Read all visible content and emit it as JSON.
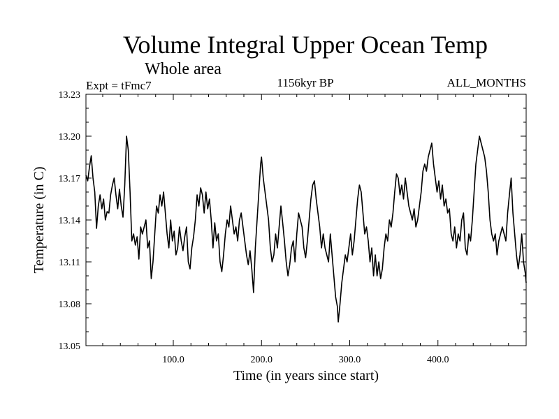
{
  "chart_data": {
    "type": "line",
    "title": "Volume Integral Upper Ocean Temp",
    "subtitle": "Whole area",
    "experiment_label": "Expt = tFmc7",
    "period_label": "1156kyr BP",
    "months_label": "ALL_MONTHS",
    "xlabel": "Time (in years since start)",
    "ylabel": "Temperature (in C)",
    "xlim": [
      1,
      500
    ],
    "ylim": [
      13.05,
      13.23
    ],
    "x_ticks": [
      100,
      200,
      300,
      400
    ],
    "x_tick_labels": [
      "100.0",
      "200.0",
      "300.0",
      "400.0"
    ],
    "y_ticks": [
      13.05,
      13.08,
      13.11,
      13.14,
      13.17,
      13.2,
      13.23
    ],
    "y_tick_labels": [
      "13.05",
      "13.08",
      "13.11",
      "13.14",
      "13.17",
      "13.20",
      "13.23"
    ],
    "grid": false,
    "series": [
      {
        "name": "Volume Integral Upper Ocean Temp",
        "color": "#000000",
        "points": [
          [
            1,
            13.172
          ],
          [
            3,
            13.168
          ],
          [
            5,
            13.178
          ],
          [
            7,
            13.186
          ],
          [
            9,
            13.17
          ],
          [
            11,
            13.16
          ],
          [
            13,
            13.134
          ],
          [
            15,
            13.15
          ],
          [
            17,
            13.158
          ],
          [
            19,
            13.148
          ],
          [
            21,
            13.155
          ],
          [
            23,
            13.14
          ],
          [
            25,
            13.146
          ],
          [
            27,
            13.145
          ],
          [
            29,
            13.158
          ],
          [
            31,
            13.165
          ],
          [
            33,
            13.17
          ],
          [
            35,
            13.158
          ],
          [
            37,
            13.148
          ],
          [
            39,
            13.162
          ],
          [
            41,
            13.15
          ],
          [
            43,
            13.142
          ],
          [
            45,
            13.165
          ],
          [
            47,
            13.2
          ],
          [
            49,
            13.19
          ],
          [
            51,
            13.16
          ],
          [
            53,
            13.125
          ],
          [
            55,
            13.13
          ],
          [
            57,
            13.122
          ],
          [
            59,
            13.128
          ],
          [
            61,
            13.112
          ],
          [
            63,
            13.135
          ],
          [
            65,
            13.13
          ],
          [
            67,
            13.135
          ],
          [
            69,
            13.14
          ],
          [
            71,
            13.12
          ],
          [
            73,
            13.125
          ],
          [
            75,
            13.098
          ],
          [
            77,
            13.11
          ],
          [
            79,
            13.13
          ],
          [
            81,
            13.15
          ],
          [
            83,
            13.145
          ],
          [
            85,
            13.158
          ],
          [
            87,
            13.15
          ],
          [
            89,
            13.16
          ],
          [
            91,
            13.145
          ],
          [
            93,
            13.13
          ],
          [
            95,
            13.12
          ],
          [
            97,
            13.14
          ],
          [
            99,
            13.125
          ],
          [
            101,
            13.132
          ],
          [
            103,
            13.115
          ],
          [
            105,
            13.12
          ],
          [
            107,
            13.135
          ],
          [
            109,
            13.125
          ],
          [
            111,
            13.118
          ],
          [
            113,
            13.128
          ],
          [
            115,
            13.135
          ],
          [
            117,
            13.11
          ],
          [
            119,
            13.105
          ],
          [
            121,
            13.12
          ],
          [
            123,
            13.128
          ],
          [
            125,
            13.14
          ],
          [
            127,
            13.158
          ],
          [
            129,
            13.15
          ],
          [
            131,
            13.163
          ],
          [
            133,
            13.158
          ],
          [
            135,
            13.145
          ],
          [
            137,
            13.16
          ],
          [
            139,
            13.148
          ],
          [
            141,
            13.155
          ],
          [
            143,
            13.14
          ],
          [
            145,
            13.12
          ],
          [
            147,
            13.138
          ],
          [
            149,
            13.125
          ],
          [
            151,
            13.13
          ],
          [
            153,
            13.11
          ],
          [
            155,
            13.103
          ],
          [
            157,
            13.115
          ],
          [
            159,
            13.13
          ],
          [
            161,
            13.14
          ],
          [
            163,
            13.135
          ],
          [
            165,
            13.15
          ],
          [
            167,
            13.14
          ],
          [
            169,
            13.13
          ],
          [
            171,
            13.135
          ],
          [
            173,
            13.125
          ],
          [
            175,
            13.14
          ],
          [
            177,
            13.145
          ],
          [
            179,
            13.135
          ],
          [
            181,
            13.125
          ],
          [
            183,
            13.115
          ],
          [
            185,
            13.108
          ],
          [
            187,
            13.118
          ],
          [
            189,
            13.105
          ],
          [
            191,
            13.088
          ],
          [
            193,
            13.12
          ],
          [
            195,
            13.14
          ],
          [
            197,
            13.16
          ],
          [
            199,
            13.18
          ],
          [
            200,
            13.185
          ],
          [
            202,
            13.17
          ],
          [
            204,
            13.16
          ],
          [
            206,
            13.15
          ],
          [
            208,
            13.14
          ],
          [
            210,
            13.12
          ],
          [
            212,
            13.11
          ],
          [
            214,
            13.115
          ],
          [
            216,
            13.13
          ],
          [
            218,
            13.12
          ],
          [
            220,
            13.135
          ],
          [
            222,
            13.15
          ],
          [
            224,
            13.138
          ],
          [
            226,
            13.125
          ],
          [
            228,
            13.11
          ],
          [
            230,
            13.1
          ],
          [
            232,
            13.108
          ],
          [
            234,
            13.12
          ],
          [
            236,
            13.125
          ],
          [
            238,
            13.11
          ],
          [
            240,
            13.13
          ],
          [
            242,
            13.145
          ],
          [
            244,
            13.14
          ],
          [
            246,
            13.135
          ],
          [
            248,
            13.12
          ],
          [
            250,
            13.113
          ],
          [
            252,
            13.125
          ],
          [
            254,
            13.14
          ],
          [
            256,
            13.155
          ],
          [
            258,
            13.165
          ],
          [
            260,
            13.168
          ],
          [
            262,
            13.155
          ],
          [
            264,
            13.145
          ],
          [
            266,
            13.135
          ],
          [
            268,
            13.12
          ],
          [
            270,
            13.13
          ],
          [
            272,
            13.12
          ],
          [
            274,
            13.115
          ],
          [
            276,
            13.11
          ],
          [
            278,
            13.13
          ],
          [
            280,
            13.115
          ],
          [
            282,
            13.1
          ],
          [
            284,
            13.085
          ],
          [
            286,
            13.078
          ],
          [
            287,
            13.067
          ],
          [
            289,
            13.08
          ],
          [
            291,
            13.095
          ],
          [
            293,
            13.105
          ],
          [
            295,
            13.115
          ],
          [
            297,
            13.11
          ],
          [
            299,
            13.12
          ],
          [
            301,
            13.13
          ],
          [
            303,
            13.115
          ],
          [
            305,
            13.125
          ],
          [
            307,
            13.14
          ],
          [
            309,
            13.155
          ],
          [
            311,
            13.165
          ],
          [
            313,
            13.16
          ],
          [
            315,
            13.145
          ],
          [
            317,
            13.13
          ],
          [
            319,
            13.135
          ],
          [
            321,
            13.125
          ],
          [
            323,
            13.11
          ],
          [
            325,
            13.12
          ],
          [
            327,
            13.1
          ],
          [
            329,
            13.115
          ],
          [
            331,
            13.1
          ],
          [
            333,
            13.11
          ],
          [
            335,
            13.098
          ],
          [
            337,
            13.105
          ],
          [
            339,
            13.12
          ],
          [
            341,
            13.13
          ],
          [
            343,
            13.125
          ],
          [
            345,
            13.14
          ],
          [
            347,
            13.135
          ],
          [
            349,
            13.145
          ],
          [
            351,
            13.16
          ],
          [
            353,
            13.173
          ],
          [
            355,
            13.17
          ],
          [
            357,
            13.158
          ],
          [
            359,
            13.165
          ],
          [
            361,
            13.155
          ],
          [
            363,
            13.17
          ],
          [
            365,
            13.16
          ],
          [
            367,
            13.15
          ],
          [
            369,
            13.145
          ],
          [
            371,
            13.14
          ],
          [
            373,
            13.148
          ],
          [
            375,
            13.135
          ],
          [
            377,
            13.14
          ],
          [
            379,
            13.15
          ],
          [
            381,
            13.16
          ],
          [
            383,
            13.175
          ],
          [
            385,
            13.18
          ],
          [
            387,
            13.175
          ],
          [
            389,
            13.185
          ],
          [
            391,
            13.19
          ],
          [
            393,
            13.195
          ],
          [
            395,
            13.18
          ],
          [
            397,
            13.17
          ],
          [
            399,
            13.16
          ],
          [
            401,
            13.168
          ],
          [
            403,
            13.155
          ],
          [
            405,
            13.165
          ],
          [
            407,
            13.15
          ],
          [
            409,
            13.155
          ],
          [
            411,
            13.145
          ],
          [
            413,
            13.148
          ],
          [
            415,
            13.13
          ],
          [
            417,
            13.125
          ],
          [
            419,
            13.135
          ],
          [
            421,
            13.12
          ],
          [
            423,
            13.13
          ],
          [
            425,
            13.125
          ],
          [
            427,
            13.14
          ],
          [
            429,
            13.145
          ],
          [
            431,
            13.12
          ],
          [
            433,
            13.115
          ],
          [
            435,
            13.13
          ],
          [
            437,
            13.125
          ],
          [
            439,
            13.14
          ],
          [
            441,
            13.16
          ],
          [
            443,
            13.18
          ],
          [
            445,
            13.19
          ],
          [
            447,
            13.2
          ],
          [
            449,
            13.195
          ],
          [
            451,
            13.19
          ],
          [
            453,
            13.185
          ],
          [
            455,
            13.175
          ],
          [
            457,
            13.16
          ],
          [
            459,
            13.14
          ],
          [
            461,
            13.13
          ],
          [
            463,
            13.125
          ],
          [
            465,
            13.13
          ],
          [
            467,
            13.115
          ],
          [
            469,
            13.125
          ],
          [
            471,
            13.13
          ],
          [
            473,
            13.135
          ],
          [
            475,
            13.13
          ],
          [
            477,
            13.125
          ],
          [
            479,
            13.145
          ],
          [
            481,
            13.158
          ],
          [
            483,
            13.17
          ],
          [
            485,
            13.145
          ],
          [
            487,
            13.13
          ],
          [
            489,
            13.115
          ],
          [
            491,
            13.105
          ],
          [
            493,
            13.115
          ],
          [
            495,
            13.13
          ],
          [
            497,
            13.11
          ],
          [
            499,
            13.102
          ],
          [
            500,
            13.095
          ]
        ]
      }
    ]
  }
}
